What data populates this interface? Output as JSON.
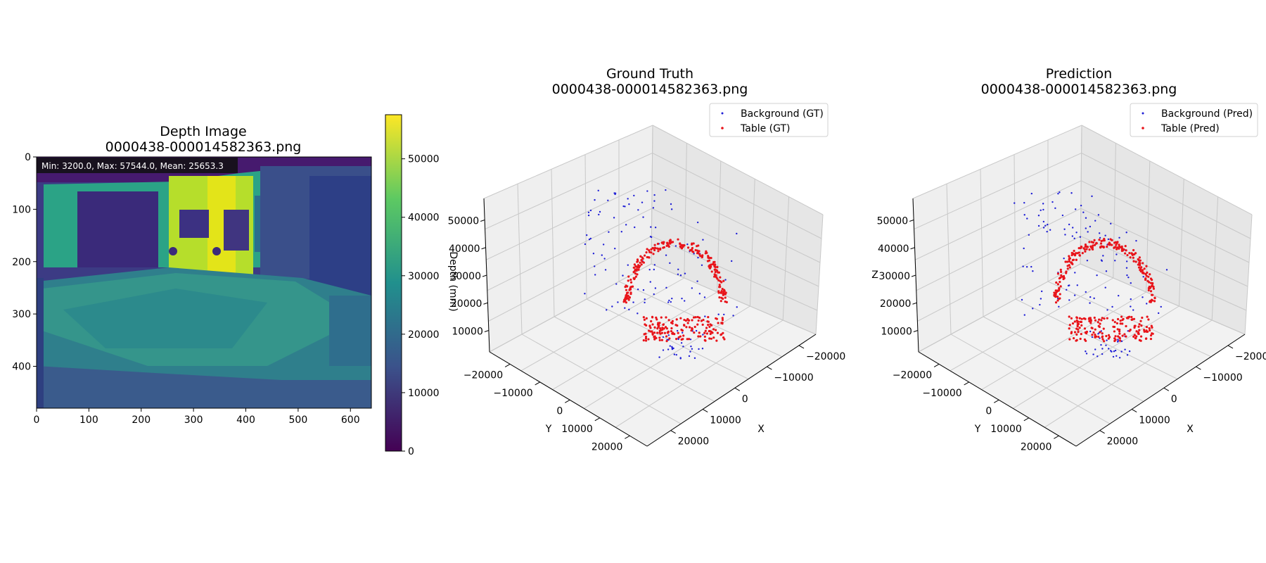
{
  "panels": [
    {
      "title_line1": "Depth Image",
      "title_line2": "0000438-000014582363.png",
      "stats_label": "Min: 3200.0, Max: 57544.0, Mean: 25653.3",
      "x_ticks": [
        "0",
        "100",
        "200",
        "300",
        "400",
        "500",
        "600"
      ],
      "y_ticks": [
        "0",
        "100",
        "200",
        "300",
        "400"
      ],
      "colorbar_ticks": [
        "0",
        "10000",
        "20000",
        "30000",
        "40000",
        "50000"
      ]
    },
    {
      "title_line1": "Ground Truth",
      "title_line2": "0000438-000014582363.png",
      "legend": [
        "Background (GT)",
        "Table (GT)"
      ],
      "z_label": "Depth (mm)",
      "x_label": "X",
      "y_label": "Y"
    },
    {
      "title_line1": "Prediction",
      "title_line2": "0000438-000014582363.png",
      "legend": [
        "Background (Pred)",
        "Table (Pred)"
      ],
      "z_label": "Z",
      "x_label": "X",
      "y_label": "Y"
    }
  ],
  "axis3d_ticks": {
    "x": [
      "−20000",
      "−10000",
      "0",
      "10000",
      "20000"
    ],
    "y": [
      "−20000",
      "−10000",
      "0",
      "10000",
      "20000"
    ],
    "z": [
      "10000",
      "20000",
      "30000",
      "40000",
      "50000"
    ]
  },
  "colors": {
    "background_points": "#1f1fd6",
    "table_points": "#e8141a",
    "colormap": [
      "#440154",
      "#3b528b",
      "#21908d",
      "#5dc962",
      "#fde725"
    ]
  },
  "chart_data": [
    {
      "type": "heatmap",
      "title": "Depth Image\n0000438-000014582363.png",
      "image_width": 640,
      "image_height": 480,
      "xlim": [
        0,
        640
      ],
      "ylim": [
        480,
        0
      ],
      "colorbar_range": [
        0,
        57544
      ],
      "stats": {
        "min": 3200.0,
        "max": 57544.0,
        "mean": 25653.3
      },
      "colormap": "viridis"
    },
    {
      "type": "scatter",
      "projection": "3d",
      "title": "Ground Truth\n0000438-000014582363.png",
      "xlabel": "X",
      "ylabel": "Y",
      "zlabel": "Depth (mm)",
      "xlim": [
        -25000,
        25000
      ],
      "ylim": [
        -25000,
        25000
      ],
      "zlim": [
        3200,
        57544
      ],
      "series": [
        {
          "name": "Background (GT)",
          "color": "#1f1fd6",
          "x": [],
          "y": [],
          "z": []
        },
        {
          "name": "Table (GT)",
          "color": "#e8141a",
          "x": [],
          "y": [],
          "z": []
        }
      ]
    },
    {
      "type": "scatter",
      "projection": "3d",
      "title": "Prediction\n0000438-000014582363.png",
      "xlabel": "X",
      "ylabel": "Y",
      "zlabel": "Z",
      "xlim": [
        -25000,
        25000
      ],
      "ylim": [
        -25000,
        25000
      ],
      "zlim": [
        3200,
        57544
      ],
      "series": [
        {
          "name": "Background (Pred)",
          "color": "#1f1fd6",
          "x": [],
          "y": [],
          "z": []
        },
        {
          "name": "Table (Pred)",
          "color": "#e8141a",
          "x": [],
          "y": [],
          "z": []
        }
      ]
    }
  ]
}
